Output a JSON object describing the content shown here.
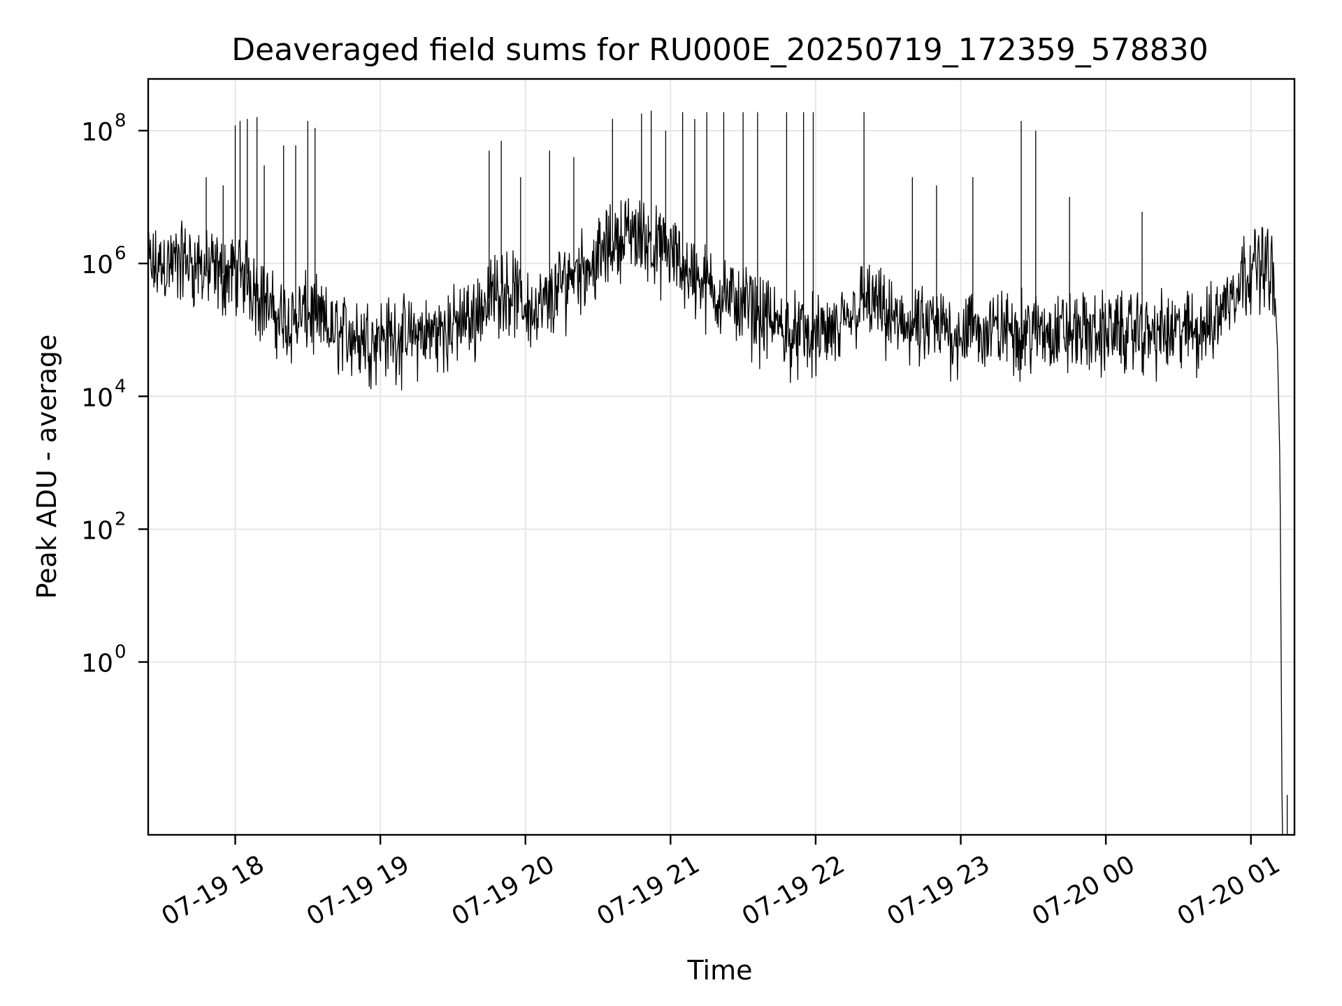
{
  "chart_data": {
    "type": "line",
    "title": "Deaveraged field sums for RU000E_20250719_172359_578830",
    "xlabel": "Time",
    "ylabel": "Peak ADU - average",
    "yscale": "log",
    "xlim": [
      "2025-07-19 17:24",
      "2025-07-20 01:18"
    ],
    "ylim": [
      0.0025,
      600000000
    ],
    "grid": true,
    "x_ticks": [
      "2025-07-19 18:00",
      "2025-07-19 19:00",
      "2025-07-19 20:00",
      "2025-07-19 21:00",
      "2025-07-19 22:00",
      "2025-07-19 23:00",
      "2025-07-20 00:00",
      "2025-07-20 01:00"
    ],
    "x_tick_labels": [
      "07-19 18",
      "07-19 19",
      "07-19 20",
      "07-19 21",
      "07-19 22",
      "07-19 23",
      "07-20 00",
      "07-20 01"
    ],
    "y_ticks": [
      1,
      100,
      10000,
      1000000,
      100000000
    ],
    "y_tick_labels": [
      {
        "base": "10",
        "exp": "0"
      },
      {
        "base": "10",
        "exp": "2"
      },
      {
        "base": "10",
        "exp": "4"
      },
      {
        "base": "10",
        "exp": "6"
      },
      {
        "base": "10",
        "exp": "8"
      }
    ],
    "line_color": "#000000",
    "series": [
      {
        "x": [
          "2025-07-19 17:24",
          "2025-07-19 17:30",
          "2025-07-19 17:36",
          "2025-07-19 17:40",
          "2025-07-19 17:45",
          "2025-07-19 17:50",
          "2025-07-19 17:55",
          "2025-07-19 18:00",
          "2025-07-19 18:05",
          "2025-07-19 18:10",
          "2025-07-19 18:15",
          "2025-07-19 18:20",
          "2025-07-19 18:25",
          "2025-07-19 18:30",
          "2025-07-19 18:35",
          "2025-07-19 18:40",
          "2025-07-19 18:45",
          "2025-07-19 18:50",
          "2025-07-19 18:55",
          "2025-07-19 19:00",
          "2025-07-19 19:10",
          "2025-07-19 19:20",
          "2025-07-19 19:30",
          "2025-07-19 19:35",
          "2025-07-19 19:40",
          "2025-07-19 19:45",
          "2025-07-19 19:50",
          "2025-07-19 19:55",
          "2025-07-19 20:00",
          "2025-07-19 20:05",
          "2025-07-19 20:10",
          "2025-07-19 20:15",
          "2025-07-19 20:20",
          "2025-07-19 20:25",
          "2025-07-19 20:30",
          "2025-07-19 20:35",
          "2025-07-19 20:40",
          "2025-07-19 20:45",
          "2025-07-19 20:50",
          "2025-07-19 20:55",
          "2025-07-19 21:00",
          "2025-07-19 21:05",
          "2025-07-19 21:10",
          "2025-07-19 21:15",
          "2025-07-19 21:20",
          "2025-07-19 21:25",
          "2025-07-19 21:30",
          "2025-07-19 21:35",
          "2025-07-19 21:40",
          "2025-07-19 21:45",
          "2025-07-19 21:50",
          "2025-07-19 21:55",
          "2025-07-19 22:00",
          "2025-07-19 22:05",
          "2025-07-19 22:10",
          "2025-07-19 22:15",
          "2025-07-19 22:20",
          "2025-07-19 22:25",
          "2025-07-19 22:30",
          "2025-07-19 22:40",
          "2025-07-19 22:50",
          "2025-07-19 23:00",
          "2025-07-19 23:10",
          "2025-07-19 23:20",
          "2025-07-19 23:30",
          "2025-07-19 23:40",
          "2025-07-19 23:50",
          "2025-07-20 00:00",
          "2025-07-20 00:10",
          "2025-07-20 00:20",
          "2025-07-20 00:30",
          "2025-07-20 00:40",
          "2025-07-20 00:45",
          "2025-07-20 00:50",
          "2025-07-20 00:55",
          "2025-07-20 01:00",
          "2025-07-20 01:05",
          "2025-07-20 01:08",
          "2025-07-20 01:10",
          "2025-07-20 01:11",
          "2025-07-20 01:12",
          "2025-07-20 01:13",
          "2025-07-20 01:14"
        ],
        "y": [
          900000,
          1000000,
          1100000,
          1200000,
          900000,
          800000,
          700000,
          800000,
          700000,
          400000,
          200000,
          150000,
          150000,
          200000,
          150000,
          100000,
          100000,
          90000,
          85000,
          90000,
          85000,
          90000,
          120000,
          150000,
          200000,
          300000,
          500000,
          400000,
          250000,
          200000,
          300000,
          500000,
          900000,
          1000000,
          1200000,
          2000000,
          3000000,
          3000000,
          2500000,
          1800000,
          1500000,
          1000000,
          700000,
          500000,
          400000,
          300000,
          250000,
          200000,
          150000,
          120000,
          100000,
          90000,
          85000,
          90000,
          100000,
          200000,
          300000,
          250000,
          150000,
          120000,
          110000,
          100000,
          100000,
          110000,
          100000,
          100000,
          100000,
          100000,
          100000,
          100000,
          100000,
          110000,
          150000,
          300000,
          600000,
          1000000,
          1200000,
          1000000,
          300000,
          50000,
          1000,
          0.001,
          0.001
        ],
        "spikes": [
          {
            "x": "2025-07-19 17:48",
            "y": 20000000
          },
          {
            "x": "2025-07-19 17:55",
            "y": 15000000
          },
          {
            "x": "2025-07-19 18:00",
            "y": 120000000
          },
          {
            "x": "2025-07-19 18:02",
            "y": 140000000
          },
          {
            "x": "2025-07-19 18:05",
            "y": 150000000
          },
          {
            "x": "2025-07-19 18:09",
            "y": 160000000
          },
          {
            "x": "2025-07-19 18:12",
            "y": 30000000
          },
          {
            "x": "2025-07-19 18:20",
            "y": 60000000
          },
          {
            "x": "2025-07-19 18:25",
            "y": 60000000
          },
          {
            "x": "2025-07-19 18:30",
            "y": 140000000
          },
          {
            "x": "2025-07-19 18:33",
            "y": 110000000
          },
          {
            "x": "2025-07-19 19:45",
            "y": 50000000
          },
          {
            "x": "2025-07-19 19:50",
            "y": 70000000
          },
          {
            "x": "2025-07-19 19:58",
            "y": 20000000
          },
          {
            "x": "2025-07-19 20:10",
            "y": 50000000
          },
          {
            "x": "2025-07-19 20:20",
            "y": 40000000
          },
          {
            "x": "2025-07-19 20:36",
            "y": 150000000
          },
          {
            "x": "2025-07-19 20:48",
            "y": 180000000
          },
          {
            "x": "2025-07-19 20:52",
            "y": 200000000
          },
          {
            "x": "2025-07-19 20:58",
            "y": 100000000
          },
          {
            "x": "2025-07-19 21:05",
            "y": 190000000
          },
          {
            "x": "2025-07-19 21:10",
            "y": 150000000
          },
          {
            "x": "2025-07-19 21:15",
            "y": 190000000
          },
          {
            "x": "2025-07-19 21:22",
            "y": 190000000
          },
          {
            "x": "2025-07-19 21:30",
            "y": 190000000
          },
          {
            "x": "2025-07-19 21:36",
            "y": 190000000
          },
          {
            "x": "2025-07-19 21:48",
            "y": 190000000
          },
          {
            "x": "2025-07-19 21:55",
            "y": 190000000
          },
          {
            "x": "2025-07-19 21:59",
            "y": 190000000
          },
          {
            "x": "2025-07-19 22:20",
            "y": 190000000
          },
          {
            "x": "2025-07-19 22:40",
            "y": 20000000
          },
          {
            "x": "2025-07-19 22:50",
            "y": 15000000
          },
          {
            "x": "2025-07-19 23:05",
            "y": 20000000
          },
          {
            "x": "2025-07-19 23:25",
            "y": 140000000
          },
          {
            "x": "2025-07-19 23:31",
            "y": 100000000
          },
          {
            "x": "2025-07-19 23:45",
            "y": 10000000
          },
          {
            "x": "2025-07-20 00:15",
            "y": 6000000
          },
          {
            "x": "2025-07-20 01:15",
            "y": 0.01
          }
        ]
      }
    ]
  }
}
